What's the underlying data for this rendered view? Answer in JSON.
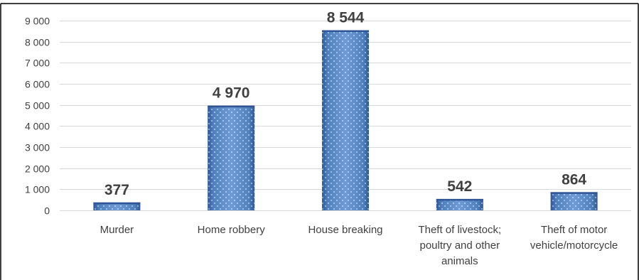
{
  "chart_data": {
    "type": "bar",
    "categories": [
      [
        "Murder"
      ],
      [
        "Home robbery"
      ],
      [
        "House breaking"
      ],
      [
        "Theft of livestock;",
        "poultry and other",
        "animals"
      ],
      [
        "Theft of motor",
        "vehicle/motorcycle"
      ]
    ],
    "values": [
      377,
      4970,
      8544,
      542,
      864
    ],
    "data_labels": [
      "377",
      "4 970",
      "8 544",
      "542",
      "864"
    ],
    "yticks": [
      0,
      1000,
      2000,
      3000,
      4000,
      5000,
      6000,
      7000,
      8000,
      9000
    ],
    "ytick_labels": [
      "0",
      "1 000",
      "2 000",
      "3 000",
      "4 000",
      "5 000",
      "6 000",
      "7 000",
      "8 000",
      "9 000"
    ],
    "ylim": [
      0,
      9000
    ],
    "grid": true,
    "legend": "none",
    "title": "",
    "xlabel": "",
    "ylabel": "",
    "colors": {
      "bar": "#4f81bd",
      "bar_dark": "#2f5597",
      "bar_light": "#6f9bd8",
      "border": "#000000"
    }
  }
}
